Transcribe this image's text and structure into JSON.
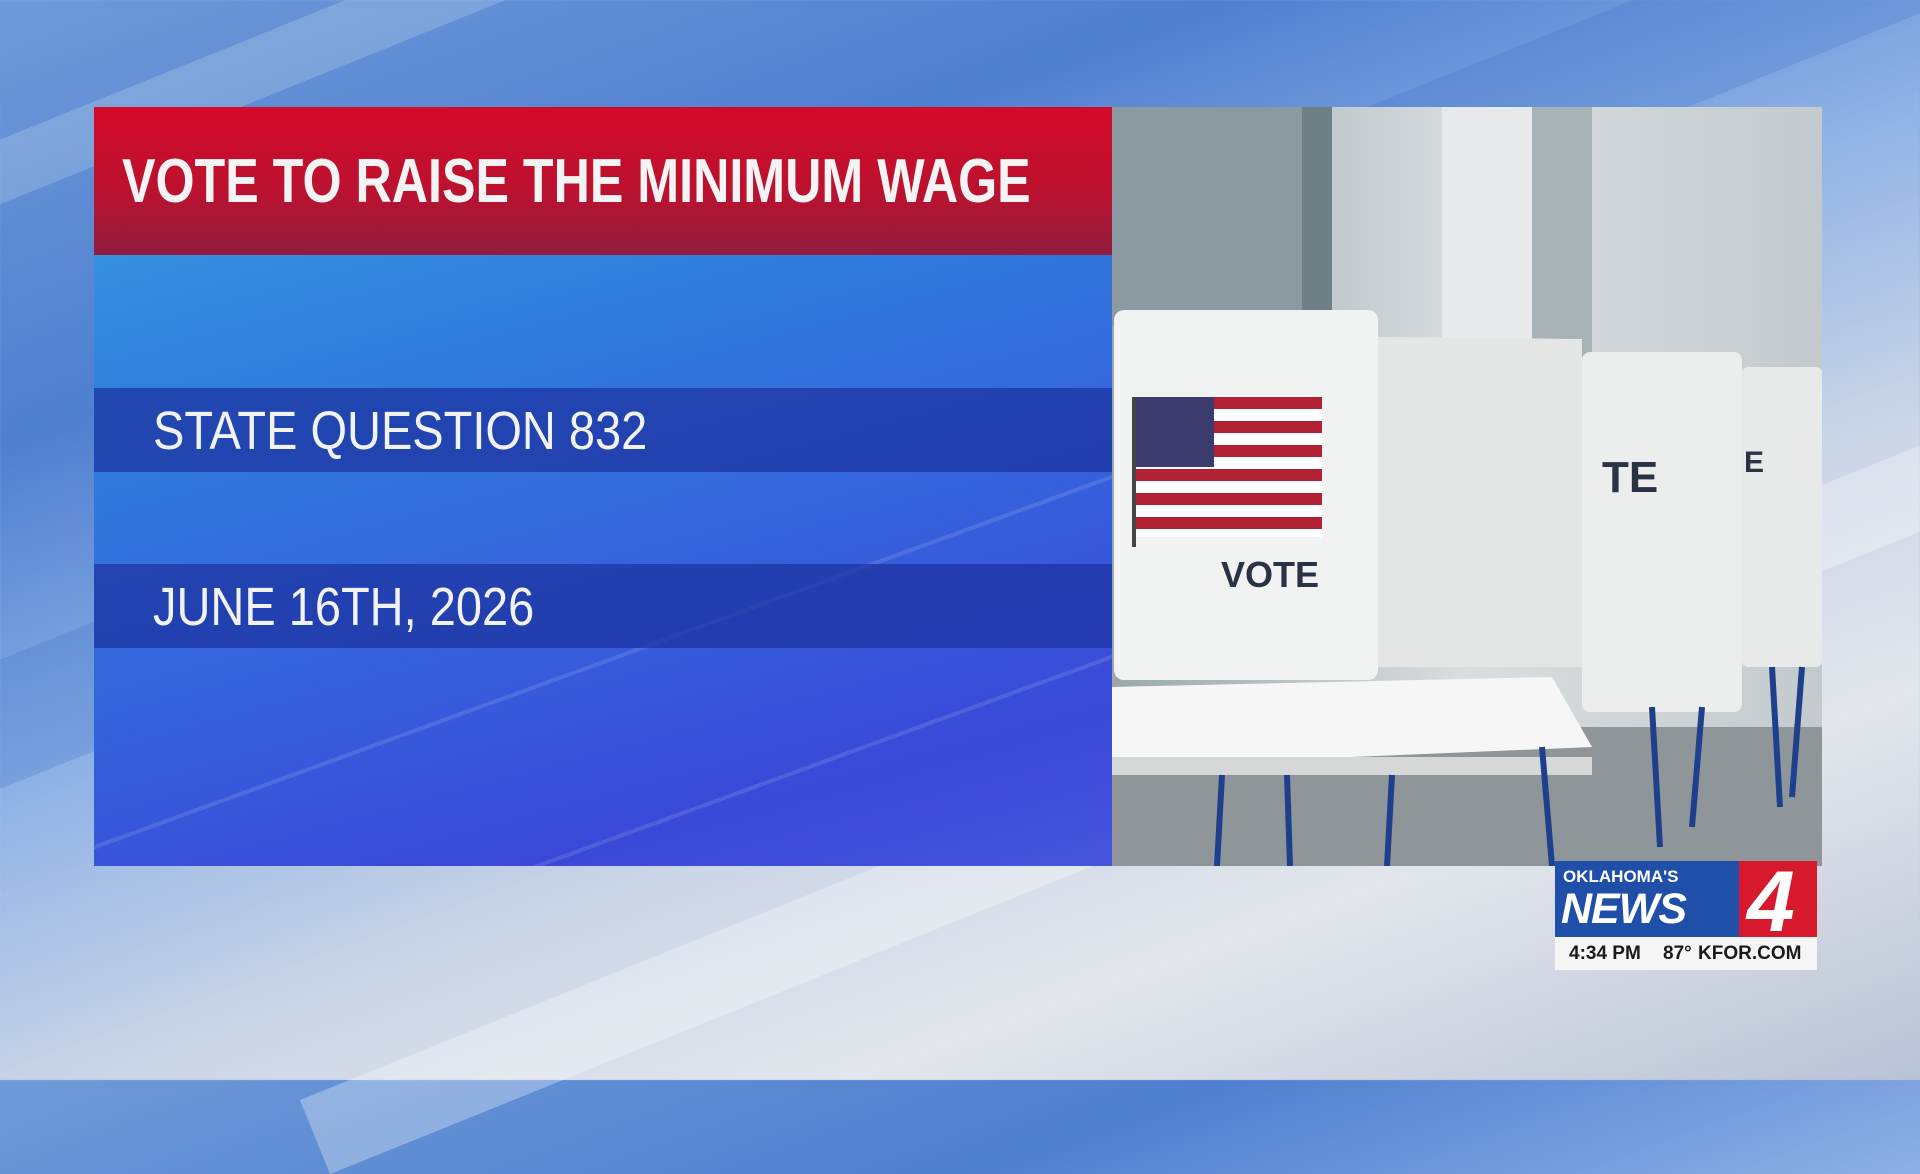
{
  "graphic": {
    "title": "VOTE TO RAISE THE MINIMUM WAGE",
    "lines": [
      "STATE QUESTION 832",
      "JUNE 16TH, 2026"
    ]
  },
  "photo": {
    "booth_signs": [
      "VOTE",
      "TE",
      "E"
    ]
  },
  "logo": {
    "brand_top": "OKLAHOMA'S",
    "brand_main": "NEWS",
    "channel": "4",
    "time": "4:34 PM",
    "temperature": "87°",
    "website": "KFOR.COM"
  }
}
